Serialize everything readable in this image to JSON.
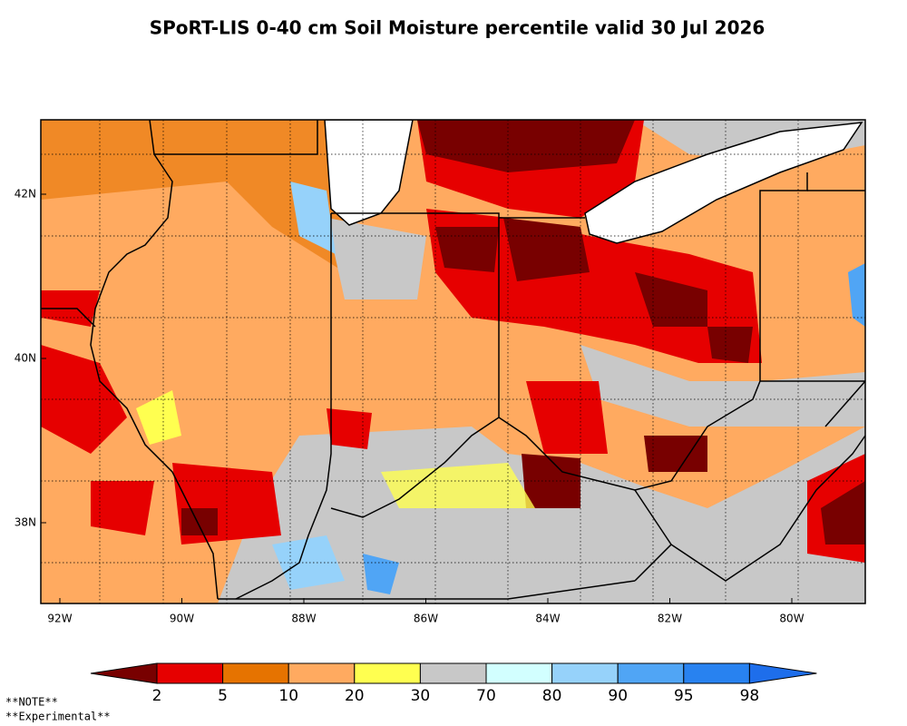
{
  "title": "SPoRT-LIS 0-40 cm Soil Moisture percentile valid 30 Jul 2026",
  "map": {
    "lon_labels": [
      "92W",
      "90W",
      "88W",
      "86W",
      "84W",
      "82W",
      "80W"
    ],
    "lat_labels": [
      "42N",
      "40N",
      "38N"
    ]
  },
  "colorbar": {
    "colors": [
      "#780000",
      "#e60000",
      "#e67300",
      "#ffaa60",
      "#ffff50",
      "#c8c8c8",
      "#d2ffff",
      "#96d2fa",
      "#50a5f5",
      "#2882f0",
      "#1e6eeb"
    ],
    "labels": [
      2,
      5,
      10,
      20,
      30,
      70,
      80,
      90,
      95,
      98
    ]
  },
  "notes": [
    "**NOTE**",
    "**Experimental**"
  ]
}
